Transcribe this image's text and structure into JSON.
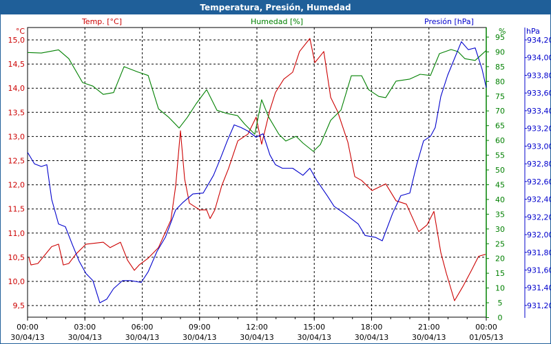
{
  "title": "Temperatura, Presión, Humedad",
  "chart_data": {
    "type": "line",
    "title": "Temperatura, Presión, Humedad",
    "x_unit": "hours since 30/04/13 00:00",
    "xlim": [
      0,
      24
    ],
    "x_ticks": [
      {
        "h": 0,
        "time": "00:00",
        "date": "30/04/13"
      },
      {
        "h": 3,
        "time": "03:00",
        "date": "30/04/13"
      },
      {
        "h": 6,
        "time": "06:00",
        "date": "30/04/13"
      },
      {
        "h": 9,
        "time": "09:00",
        "date": "30/04/13"
      },
      {
        "h": 12,
        "time": "12:00",
        "date": "30/04/13"
      },
      {
        "h": 15,
        "time": "15:00",
        "date": "30/04/13"
      },
      {
        "h": 18,
        "time": "18:00",
        "date": "30/04/13"
      },
      {
        "h": 21,
        "time": "21:00",
        "date": "30/04/13"
      },
      {
        "h": 24,
        "time": "00:00",
        "date": "01/05/13"
      }
    ],
    "grid": true,
    "axes": {
      "temp": {
        "legend": "Temp. [°C]",
        "unit": "°C",
        "color": "#cc0000",
        "ticks": [
          "15,0",
          "14,5",
          "14,0",
          "13,5",
          "13,0",
          "12,5",
          "12,0",
          "11,5",
          "11,0",
          "10,5",
          "10,0",
          "9,5"
        ],
        "tick_values": [
          15,
          14.5,
          14,
          13.5,
          13,
          12.5,
          12,
          11.5,
          11,
          10.5,
          10,
          9.5
        ]
      },
      "hum": {
        "legend": "Humedad [%]",
        "unit": "%",
        "color": "#008000",
        "ticks": [
          "95",
          "90",
          "85",
          "80",
          "75",
          "70",
          "65",
          "60",
          "55",
          "50",
          "45",
          "40",
          "35",
          "30",
          "25",
          "20",
          "15",
          "10",
          "5",
          "0"
        ],
        "tick_values": [
          95,
          90,
          85,
          80,
          75,
          70,
          65,
          60,
          55,
          50,
          45,
          40,
          35,
          30,
          25,
          20,
          15,
          10,
          5,
          0
        ]
      },
      "pres": {
        "legend": "Presión [hPa]",
        "unit": "hPa",
        "color": "#0000cc",
        "ticks": [
          "934,20",
          "934,00",
          "933,80",
          "933,60",
          "933,40",
          "933,20",
          "933,00",
          "932,80",
          "932,60",
          "932,40",
          "932,20",
          "932,00",
          "931,80",
          "931,60",
          "931,40",
          "931,20"
        ],
        "tick_values": [
          934.2,
          934.0,
          933.8,
          933.6,
          933.4,
          933.2,
          933.0,
          932.8,
          932.6,
          932.4,
          932.2,
          932.0,
          931.8,
          931.6,
          931.4,
          931.2
        ]
      }
    },
    "series": [
      {
        "name": "Temp. [°C]",
        "axis": "temp",
        "color": "#cc0000",
        "points": [
          [
            0.07,
            10.5
          ],
          [
            0.18,
            10.34
          ],
          [
            0.54,
            10.37
          ],
          [
            1.26,
            10.72
          ],
          [
            1.62,
            10.77
          ],
          [
            1.87,
            10.34
          ],
          [
            2.16,
            10.37
          ],
          [
            2.52,
            10.56
          ],
          [
            3.06,
            10.77
          ],
          [
            3.96,
            10.81
          ],
          [
            4.32,
            10.7
          ],
          [
            4.86,
            10.81
          ],
          [
            5.23,
            10.44
          ],
          [
            5.59,
            10.23
          ],
          [
            5.84,
            10.34
          ],
          [
            6.31,
            10.48
          ],
          [
            6.85,
            10.7
          ],
          [
            7.5,
            11.27
          ],
          [
            7.75,
            11.98
          ],
          [
            8.0,
            13.12
          ],
          [
            8.22,
            12.12
          ],
          [
            8.47,
            11.62
          ],
          [
            9.01,
            11.48
          ],
          [
            9.37,
            11.48
          ],
          [
            9.55,
            11.3
          ],
          [
            9.8,
            11.48
          ],
          [
            10.16,
            11.98
          ],
          [
            10.52,
            12.34
          ],
          [
            11.0,
            12.91
          ],
          [
            11.53,
            13.05
          ],
          [
            11.96,
            13.4
          ],
          [
            12.25,
            12.84
          ],
          [
            12.68,
            13.55
          ],
          [
            12.97,
            13.91
          ],
          [
            13.41,
            14.19
          ],
          [
            13.87,
            14.33
          ],
          [
            14.23,
            14.76
          ],
          [
            14.77,
            15.03
          ],
          [
            15.03,
            14.53
          ],
          [
            15.32,
            14.67
          ],
          [
            15.5,
            14.76
          ],
          [
            15.86,
            13.81
          ],
          [
            16.22,
            13.52
          ],
          [
            16.76,
            12.88
          ],
          [
            17.12,
            12.17
          ],
          [
            17.48,
            12.09
          ],
          [
            18.02,
            11.88
          ],
          [
            18.74,
            12.02
          ],
          [
            19.28,
            11.67
          ],
          [
            19.82,
            11.6
          ],
          [
            20.47,
            11.03
          ],
          [
            20.9,
            11.17
          ],
          [
            21.26,
            11.45
          ],
          [
            21.62,
            10.6
          ],
          [
            21.91,
            10.17
          ],
          [
            22.34,
            9.6
          ],
          [
            22.77,
            9.89
          ],
          [
            23.24,
            10.24
          ],
          [
            23.6,
            10.52
          ],
          [
            23.96,
            10.56
          ]
        ]
      },
      {
        "name": "Humedad [%]",
        "axis": "hum",
        "color": "#008000",
        "points": [
          [
            0,
            89.8
          ],
          [
            0.72,
            89.6
          ],
          [
            1.62,
            90.7
          ],
          [
            2.16,
            87.7
          ],
          [
            2.88,
            79.6
          ],
          [
            3.42,
            78.4
          ],
          [
            3.96,
            75.6
          ],
          [
            4.5,
            76.2
          ],
          [
            5.05,
            85.0
          ],
          [
            5.77,
            83.2
          ],
          [
            6.31,
            82.0
          ],
          [
            6.85,
            70.7
          ],
          [
            7.39,
            67.8
          ],
          [
            7.93,
            64.2
          ],
          [
            8.36,
            67.8
          ],
          [
            8.83,
            72.5
          ],
          [
            9.37,
            77.2
          ],
          [
            9.91,
            70.2
          ],
          [
            10.45,
            69.1
          ],
          [
            10.99,
            68.4
          ],
          [
            11.35,
            65.6
          ],
          [
            11.89,
            62.1
          ],
          [
            12.25,
            73.8
          ],
          [
            12.61,
            68.0
          ],
          [
            13.15,
            62.1
          ],
          [
            13.51,
            59.8
          ],
          [
            14.05,
            61.4
          ],
          [
            14.41,
            59.1
          ],
          [
            14.95,
            56.3
          ],
          [
            15.32,
            58.6
          ],
          [
            15.86,
            66.8
          ],
          [
            16.4,
            70.3
          ],
          [
            16.94,
            81.9
          ],
          [
            17.48,
            81.9
          ],
          [
            17.84,
            77.2
          ],
          [
            18.38,
            74.9
          ],
          [
            18.74,
            74.5
          ],
          [
            19.28,
            80.1
          ],
          [
            20.0,
            80.8
          ],
          [
            20.54,
            82.4
          ],
          [
            21.08,
            82.0
          ],
          [
            21.55,
            89.4
          ],
          [
            22.16,
            90.8
          ],
          [
            22.52,
            90.1
          ],
          [
            22.88,
            87.7
          ],
          [
            23.42,
            87.1
          ],
          [
            24.0,
            90.5
          ]
        ]
      },
      {
        "name": "Presión [hPa]",
        "axis": "pres",
        "color": "#0000cc",
        "points": [
          [
            0,
            932.93
          ],
          [
            0.36,
            932.8
          ],
          [
            0.72,
            932.77
          ],
          [
            1.01,
            932.79
          ],
          [
            1.26,
            932.4
          ],
          [
            1.62,
            932.12
          ],
          [
            1.98,
            932.09
          ],
          [
            2.34,
            931.89
          ],
          [
            2.7,
            931.7
          ],
          [
            3.06,
            931.56
          ],
          [
            3.42,
            931.48
          ],
          [
            3.78,
            931.23
          ],
          [
            4.14,
            931.27
          ],
          [
            4.5,
            931.39
          ],
          [
            4.97,
            931.48
          ],
          [
            5.41,
            931.48
          ],
          [
            5.95,
            931.46
          ],
          [
            6.31,
            931.58
          ],
          [
            6.77,
            931.81
          ],
          [
            7.21,
            931.97
          ],
          [
            7.75,
            932.28
          ],
          [
            8.11,
            932.36
          ],
          [
            8.65,
            932.46
          ],
          [
            9.19,
            932.47
          ],
          [
            9.73,
            932.67
          ],
          [
            10.09,
            932.86
          ],
          [
            10.45,
            933.06
          ],
          [
            10.81,
            933.24
          ],
          [
            11.17,
            933.21
          ],
          [
            11.53,
            933.17
          ],
          [
            11.96,
            933.1
          ],
          [
            12.32,
            933.14
          ],
          [
            12.68,
            932.9
          ],
          [
            12.97,
            932.79
          ],
          [
            13.33,
            932.75
          ],
          [
            13.87,
            932.75
          ],
          [
            14.41,
            932.67
          ],
          [
            14.77,
            932.75
          ],
          [
            15.14,
            932.61
          ],
          [
            15.68,
            932.44
          ],
          [
            16.04,
            932.32
          ],
          [
            16.58,
            932.24
          ],
          [
            17.3,
            932.12
          ],
          [
            17.66,
            931.99
          ],
          [
            18.2,
            931.97
          ],
          [
            18.56,
            931.93
          ],
          [
            19.1,
            932.24
          ],
          [
            19.53,
            932.44
          ],
          [
            20.0,
            932.47
          ],
          [
            20.36,
            932.79
          ],
          [
            20.72,
            933.06
          ],
          [
            21.08,
            933.11
          ],
          [
            21.33,
            933.21
          ],
          [
            21.62,
            933.56
          ],
          [
            21.98,
            933.8
          ],
          [
            22.34,
            933.99
          ],
          [
            22.7,
            934.18
          ],
          [
            23.06,
            934.09
          ],
          [
            23.42,
            934.11
          ],
          [
            23.78,
            933.87
          ],
          [
            24.0,
            933.66
          ]
        ]
      }
    ]
  }
}
